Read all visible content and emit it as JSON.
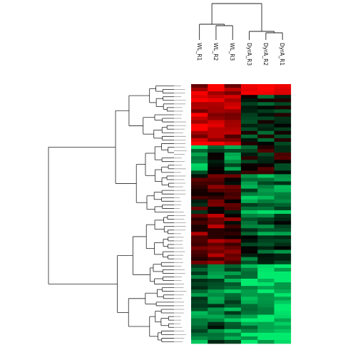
{
  "chart_data": {
    "type": "heatmap",
    "title": "",
    "columns": [
      "WL_R1",
      "WL_R2",
      "WL_R3",
      "DyrA_R3",
      "DyrA_R2",
      "DyrA_R1"
    ],
    "column_groups": [
      {
        "members": [
          "WL_R1",
          "WL_R2",
          "WL_R3"
        ]
      },
      {
        "members": [
          "DyrA_R3",
          "DyrA_R2",
          "DyrA_R1"
        ]
      }
    ],
    "row_count": 72,
    "row_labels_legible": false,
    "color_scale": {
      "low": "#00e070",
      "mid": "#000000",
      "high": "#ff0000"
    },
    "value_range": [
      -1,
      1
    ],
    "row_clusters": [
      {
        "rows": 17,
        "WL_R1": 0.75,
        "WL_R2": 0.8,
        "WL_R3": 0.55,
        "DyrA_R3": -0.15,
        "DyrA_R2": -0.2,
        "DyrA_R1": -0.15
      },
      {
        "rows": 8,
        "WL_R1": -0.6,
        "WL_R2": -0.25,
        "WL_R3": -0.45,
        "DyrA_R3": -0.1,
        "DyrA_R2": 0.05,
        "DyrA_R1": 0.0
      },
      {
        "rows": 11,
        "WL_R1": 0.1,
        "WL_R2": 0.3,
        "WL_R3": 0.15,
        "DyrA_R3": -0.55,
        "DyrA_R2": -0.65,
        "DyrA_R1": -0.55
      },
      {
        "rows": 14,
        "WL_R1": 0.35,
        "WL_R2": 0.45,
        "WL_R3": 0.25,
        "DyrA_R3": -0.3,
        "DyrA_R2": -0.4,
        "DyrA_R1": -0.35
      },
      {
        "rows": 22,
        "WL_R1": -0.5,
        "WL_R2": -0.4,
        "WL_R3": -0.55,
        "DyrA_R3": -0.75,
        "DyrA_R2": -0.85,
        "DyrA_R1": -0.8
      }
    ],
    "top_rows_override": {
      "rows": 3,
      "DyrA_R3": 0.95,
      "DyrA_R2": 0.95,
      "DyrA_R1": 0.9
    }
  }
}
